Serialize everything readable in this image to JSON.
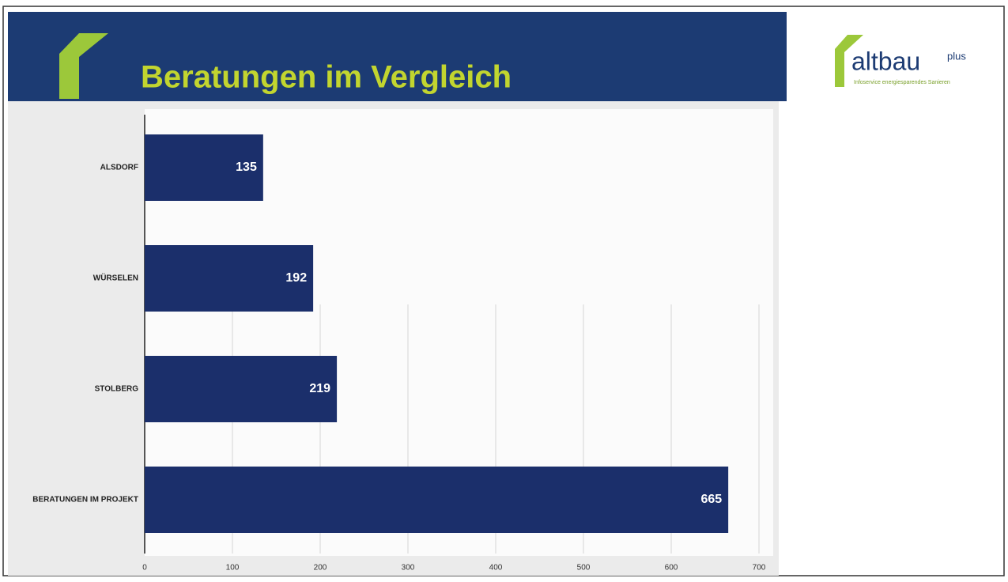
{
  "chart_data": {
    "type": "hbar",
    "title": "Beratungen im Vergleich",
    "categories": [
      "ALSDORF",
      "WÜRSELEN",
      "STOLBERG",
      "BERATUNGEN IM PROJEKT"
    ],
    "values": [
      135,
      192,
      219,
      665
    ],
    "color": "#1b2f6b",
    "xlim": [
      0,
      700
    ],
    "xticks": [
      0,
      100,
      200,
      300,
      400,
      500,
      600,
      700
    ],
    "grid": true
  },
  "logo": {
    "name": "altbau",
    "sup": "plus",
    "tagline": "Infoservice energiesparendes Sanieren"
  }
}
